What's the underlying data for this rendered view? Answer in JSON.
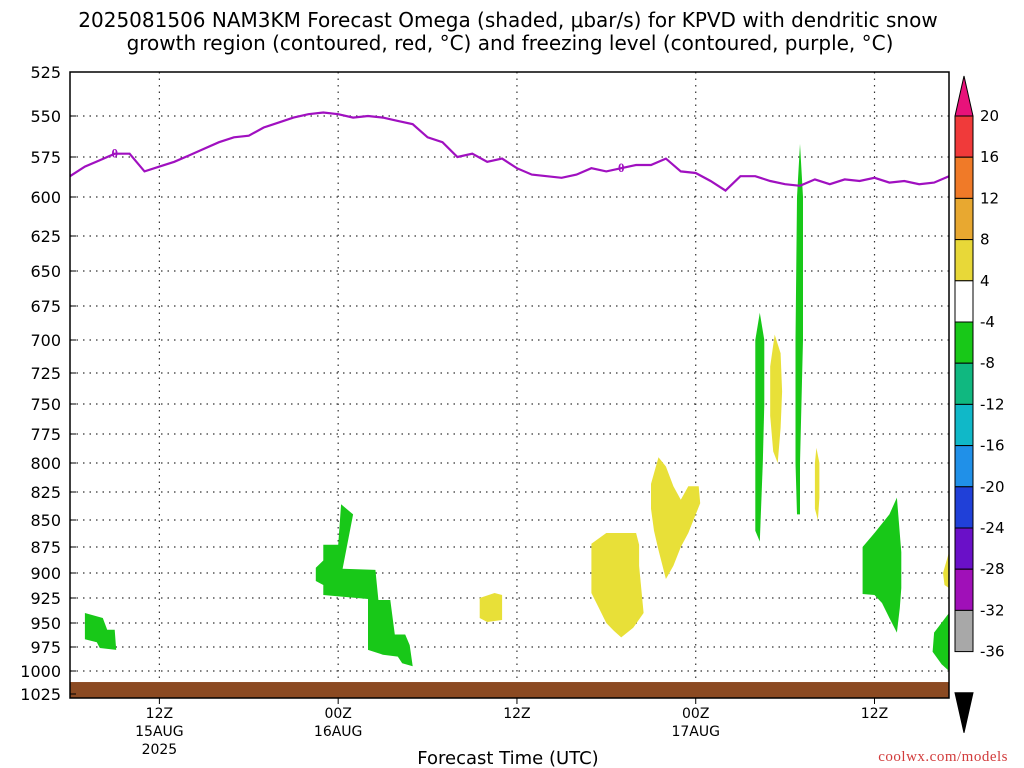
{
  "title_line1": "2025081506 NAM3KM Forecast Omega (shaded, μbar/s) for KPVD with dendritic snow",
  "title_line2": "growth region (contoured, red, °C) and freezing level (contoured, purple, °C)",
  "credit": "coolwx.com/models",
  "chart_data": {
    "type": "area",
    "title": "2025081506 NAM3KM Forecast Omega (shaded, μbar/s) for KPVD with dendritic snow growth region (contoured, red, °C) and freezing level (contoured, purple, °C)",
    "xlabel": "Forecast Time (UTC)",
    "ylabel": "",
    "x_unit": "forecast hour",
    "xlim": [
      0,
      59
    ],
    "ylim": [
      525,
      1025
    ],
    "y_inverted": true,
    "grid": true,
    "y_ticks": [
      525,
      550,
      575,
      600,
      625,
      650,
      675,
      700,
      725,
      750,
      775,
      800,
      825,
      850,
      875,
      900,
      925,
      950,
      975,
      1000,
      1025
    ],
    "x_ticks": [
      {
        "x": 6,
        "label": "12Z",
        "sub1": "15AUG",
        "sub2": "2025"
      },
      {
        "x": 18,
        "label": "00Z",
        "sub1": "16AUG",
        "sub2": ""
      },
      {
        "x": 30,
        "label": "12Z",
        "sub1": "",
        "sub2": ""
      },
      {
        "x": 42,
        "label": "00Z",
        "sub1": "17AUG",
        "sub2": ""
      },
      {
        "x": 54,
        "label": "12Z",
        "sub1": "",
        "sub2": ""
      }
    ],
    "colorbar": {
      "labels": [
        "20",
        "16",
        "12",
        "8",
        "4",
        "-4",
        "-8",
        "-12",
        "-16",
        "-20",
        "-24",
        "-28",
        "-32",
        "-36"
      ],
      "colors": [
        "#e8127a",
        "#f03a3a",
        "#f07a28",
        "#e8a830",
        "#e8d838",
        "#ffffff",
        "#18c818",
        "#10b880",
        "#10b8c8",
        "#2090e8",
        "#2040d8",
        "#6a10c8",
        "#a010b8",
        "#a8a8a8",
        "#000000"
      ]
    },
    "freezing_level": {
      "label": "0",
      "color": "#a010c0",
      "points": [
        [
          0,
          587
        ],
        [
          1,
          581
        ],
        [
          2,
          577
        ],
        [
          3,
          573
        ],
        [
          4,
          573
        ],
        [
          5,
          584
        ],
        [
          6,
          581
        ],
        [
          7,
          578
        ],
        [
          8,
          574
        ],
        [
          9,
          570
        ],
        [
          10,
          566
        ],
        [
          11,
          563
        ],
        [
          12,
          562
        ],
        [
          13,
          557
        ],
        [
          14,
          554
        ],
        [
          15,
          551
        ],
        [
          16,
          549
        ],
        [
          17,
          548
        ],
        [
          18,
          549
        ],
        [
          19,
          551
        ],
        [
          20,
          550
        ],
        [
          21,
          551
        ],
        [
          22,
          553
        ],
        [
          23,
          555
        ],
        [
          24,
          563
        ],
        [
          25,
          566
        ],
        [
          26,
          575
        ],
        [
          27,
          573
        ],
        [
          28,
          578
        ],
        [
          29,
          576
        ],
        [
          30,
          582
        ],
        [
          31,
          586
        ],
        [
          32,
          587
        ],
        [
          33,
          588
        ],
        [
          34,
          586
        ],
        [
          35,
          582
        ],
        [
          36,
          584
        ],
        [
          37,
          582
        ],
        [
          38,
          580
        ],
        [
          39,
          580
        ],
        [
          40,
          576
        ],
        [
          41,
          584
        ],
        [
          42,
          585
        ],
        [
          43,
          590
        ],
        [
          44,
          596
        ],
        [
          45,
          587
        ],
        [
          46,
          587
        ],
        [
          47,
          590
        ],
        [
          48,
          592
        ],
        [
          49,
          593
        ],
        [
          50,
          589
        ],
        [
          51,
          592
        ],
        [
          52,
          589
        ],
        [
          53,
          590
        ],
        [
          54,
          588
        ],
        [
          55,
          591
        ],
        [
          56,
          590
        ],
        [
          57,
          592
        ],
        [
          58,
          591
        ],
        [
          59,
          587
        ]
      ]
    },
    "omega_regions": [
      {
        "value_class": "-4 to -8",
        "color": "#18c818",
        "points": [
          [
            1.0,
            940
          ],
          [
            2.2,
            945
          ],
          [
            2.5,
            957
          ],
          [
            3.0,
            957
          ],
          [
            3.1,
            978
          ],
          [
            2.0,
            976
          ],
          [
            1.8,
            970
          ],
          [
            1.0,
            967
          ]
        ]
      },
      {
        "value_class": "-4 to -8",
        "color": "#18c818",
        "points": [
          [
            16.5,
            895
          ],
          [
            17.0,
            888
          ],
          [
            17.0,
            873
          ],
          [
            18.0,
            873
          ],
          [
            18.2,
            836
          ],
          [
            19.0,
            845
          ],
          [
            18.3,
            896
          ],
          [
            20.5,
            897
          ],
          [
            20.7,
            927
          ],
          [
            21.5,
            927
          ],
          [
            21.8,
            962
          ],
          [
            22.5,
            962
          ],
          [
            22.8,
            973
          ],
          [
            23.0,
            995
          ],
          [
            22.3,
            992
          ],
          [
            22.0,
            985
          ],
          [
            21.0,
            983
          ],
          [
            20.0,
            978
          ],
          [
            20.0,
            926
          ],
          [
            17.0,
            922
          ],
          [
            17.0,
            912
          ],
          [
            16.5,
            908
          ]
        ]
      },
      {
        "value_class": "4 to 8",
        "color": "#e8e038",
        "points": [
          [
            27.5,
            925
          ],
          [
            28.5,
            920
          ],
          [
            29.0,
            922
          ],
          [
            29.0,
            947
          ],
          [
            28.0,
            949
          ],
          [
            27.5,
            945
          ]
        ]
      },
      {
        "value_class": "4 to 8",
        "color": "#e8e038",
        "points": [
          [
            35.0,
            872
          ],
          [
            36.0,
            862
          ],
          [
            38.0,
            862
          ],
          [
            38.2,
            873
          ],
          [
            38.2,
            893
          ],
          [
            38.5,
            940
          ],
          [
            37.8,
            955
          ],
          [
            37.0,
            965
          ],
          [
            36.5,
            958
          ],
          [
            36.0,
            950
          ],
          [
            35.5,
            935
          ],
          [
            35.0,
            920
          ]
        ]
      },
      {
        "value_class": "4 to 8",
        "color": "#e8e038",
        "points": [
          [
            39.0,
            818
          ],
          [
            39.5,
            795
          ],
          [
            40.0,
            803
          ],
          [
            40.5,
            820
          ],
          [
            41.0,
            832
          ],
          [
            41.5,
            820
          ],
          [
            42.2,
            820
          ],
          [
            42.3,
            835
          ],
          [
            41.5,
            862
          ],
          [
            41.0,
            875
          ],
          [
            40.5,
            893
          ],
          [
            40.0,
            906
          ],
          [
            39.5,
            878
          ],
          [
            39.2,
            860
          ],
          [
            39.0,
            840
          ]
        ]
      },
      {
        "value_class": "-4 to -8",
        "color": "#18c818",
        "points": [
          [
            46.0,
            740
          ],
          [
            46.0,
            700
          ],
          [
            46.3,
            680
          ],
          [
            46.6,
            700
          ],
          [
            46.6,
            750
          ],
          [
            46.5,
            800
          ],
          [
            46.3,
            870
          ],
          [
            46.0,
            860
          ],
          [
            46.0,
            830
          ]
        ]
      },
      {
        "value_class": "4 to 8",
        "color": "#e8e038",
        "points": [
          [
            47.0,
            720
          ],
          [
            47.3,
            696
          ],
          [
            47.7,
            710
          ],
          [
            47.8,
            740
          ],
          [
            47.7,
            770
          ],
          [
            47.5,
            800
          ],
          [
            47.2,
            790
          ],
          [
            47.0,
            760
          ]
        ]
      },
      {
        "value_class": "-4 to -8",
        "color": "#18c818",
        "points": [
          [
            48.8,
            600
          ],
          [
            49.0,
            567
          ],
          [
            49.2,
            600
          ],
          [
            49.2,
            700
          ],
          [
            49.0,
            800
          ],
          [
            49.0,
            845
          ],
          [
            48.8,
            845
          ],
          [
            48.7,
            800
          ],
          [
            48.7,
            700
          ]
        ]
      },
      {
        "value_class": "4 to 8",
        "color": "#e8e038",
        "points": [
          [
            50.0,
            800
          ],
          [
            50.1,
            787
          ],
          [
            50.3,
            800
          ],
          [
            50.3,
            830
          ],
          [
            50.2,
            850
          ],
          [
            50.0,
            840
          ]
        ]
      },
      {
        "value_class": "-4 to -8",
        "color": "#18c818",
        "points": [
          [
            53.2,
            875
          ],
          [
            54.0,
            862
          ],
          [
            55.0,
            845
          ],
          [
            55.5,
            830
          ],
          [
            55.8,
            880
          ],
          [
            55.8,
            915
          ],
          [
            55.7,
            935
          ],
          [
            55.5,
            960
          ],
          [
            55.0,
            945
          ],
          [
            54.5,
            930
          ],
          [
            54.0,
            922
          ],
          [
            53.2,
            921
          ]
        ]
      },
      {
        "value_class": "-4 to -8",
        "color": "#18c818",
        "points": [
          [
            58.0,
            960
          ],
          [
            59.0,
            940
          ],
          [
            59.0,
            1000
          ],
          [
            58.5,
            993
          ],
          [
            57.9,
            980
          ]
        ]
      },
      {
        "value_class": "4 to 8",
        "color": "#e8e038",
        "points": [
          [
            58.6,
            900
          ],
          [
            59.0,
            880
          ],
          [
            59.0,
            915
          ],
          [
            58.7,
            912
          ]
        ]
      }
    ],
    "terrain": {
      "color": "#8b4a22",
      "surface_pressure": 1012
    }
  }
}
